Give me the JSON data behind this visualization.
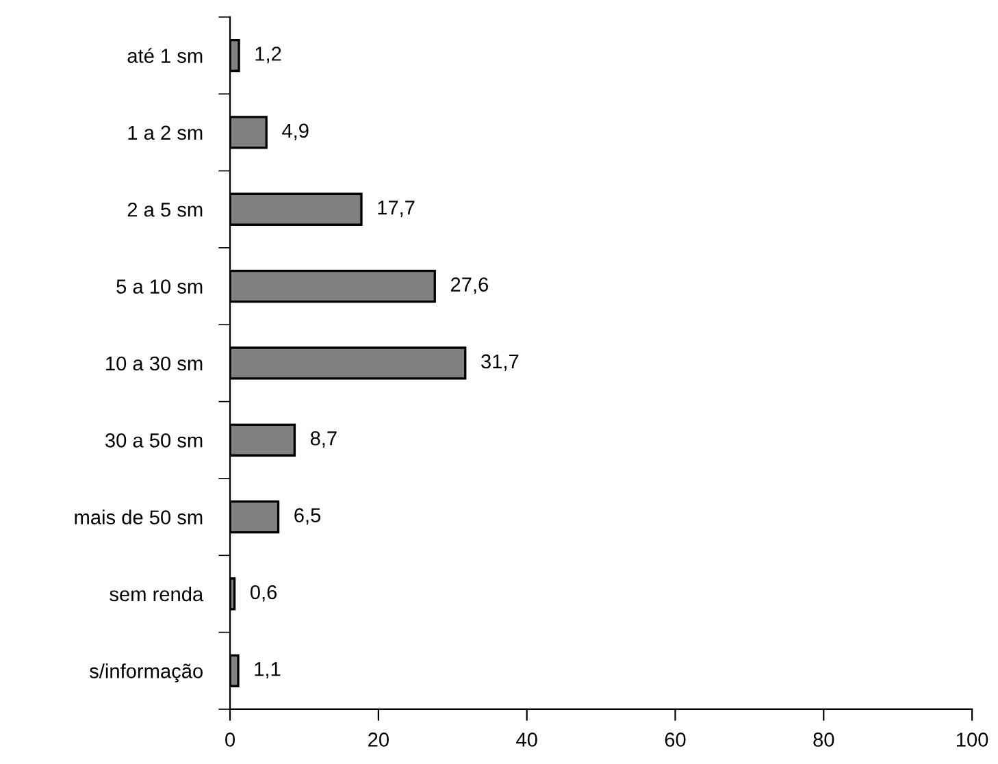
{
  "chart_data": {
    "type": "bar",
    "orientation": "horizontal",
    "categories": [
      "até 1 sm",
      "1 a 2 sm",
      "2 a 5 sm",
      "5 a 10 sm",
      "10 a 30 sm",
      "30 a 50 sm",
      "mais de 50 sm",
      "sem renda",
      "s/informação"
    ],
    "values": [
      1.2,
      4.9,
      17.7,
      27.6,
      31.7,
      8.7,
      6.5,
      0.6,
      1.1
    ],
    "value_labels": [
      "1,2",
      "4,9",
      "17,7",
      "27,6",
      "31,7",
      "8,7",
      "6,5",
      "0,6",
      "1,1"
    ],
    "color": "#808080",
    "xlim": [
      0,
      100
    ],
    "xticks": [
      0,
      20,
      40,
      60,
      80,
      100
    ],
    "grid": false,
    "legend": false
  }
}
